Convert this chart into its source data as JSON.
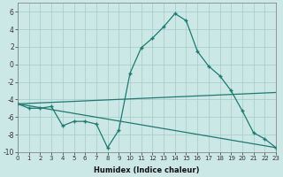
{
  "xlabel": "Humidex (Indice chaleur)",
  "background_color": "#cce8e6",
  "grid_color": "#aacfcd",
  "line_color": "#1e7a70",
  "xlim": [
    0,
    23
  ],
  "ylim": [
    -10,
    7
  ],
  "xtick_labels": [
    "0",
    "1",
    "2",
    "3",
    "4",
    "5",
    "6",
    "7",
    "8",
    "9",
    "10",
    "11",
    "12",
    "13",
    "14",
    "15",
    "16",
    "17",
    "18",
    "19",
    "20",
    "21",
    "22",
    "23"
  ],
  "ytick_values": [
    -10,
    -8,
    -6,
    -4,
    -2,
    0,
    2,
    4,
    6
  ],
  "series": [
    {
      "x": [
        0,
        1,
        2,
        3,
        4,
        5,
        6,
        7,
        8,
        9,
        10,
        11,
        12,
        13,
        14,
        15,
        16,
        17,
        18,
        19,
        20,
        21,
        22,
        23
      ],
      "y": [
        -4.5,
        -5.0,
        -5.0,
        -4.8,
        -7.0,
        -6.5,
        -6.5,
        -6.8,
        -9.5,
        -7.5,
        -1.0,
        1.9,
        3.0,
        4.3,
        5.8,
        5.0,
        1.5,
        -0.2,
        -1.3,
        -3.0,
        -5.3,
        -7.8,
        -8.5,
        -9.5
      ],
      "markers": true
    },
    {
      "x": [
        0,
        23
      ],
      "y": [
        -4.5,
        -3.2
      ],
      "markers": false
    },
    {
      "x": [
        0,
        23
      ],
      "y": [
        -4.5,
        -9.5
      ],
      "markers": false
    }
  ]
}
